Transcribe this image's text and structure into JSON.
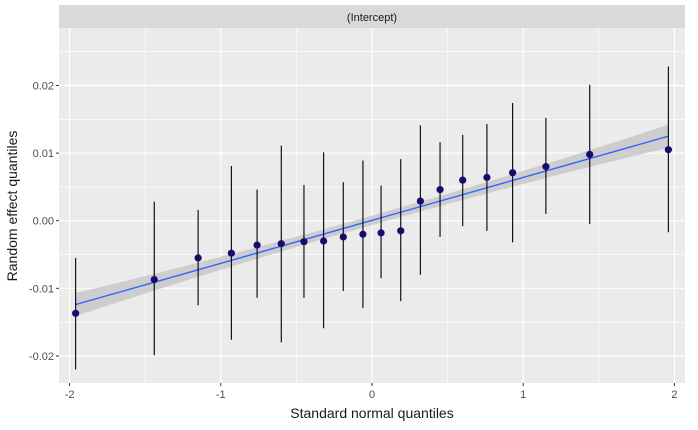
{
  "colors": {
    "panel_bg": "#ebebeb",
    "grid_major": "#ffffff",
    "strip_bg": "#d9d9d9",
    "point": "#1a0a6b",
    "errorbar": "#000000",
    "fit_line": "#3366ff",
    "ribbon": "#c8c8c8",
    "axis_tick": "#333333"
  },
  "chart_data": {
    "type": "scatter",
    "title": "",
    "strip_label": "(Intercept)",
    "xlabel": "Standard normal quantiles",
    "ylabel": "Random effect quantiles",
    "xlim": [
      -2.07,
      2.07
    ],
    "ylim": [
      -0.024,
      0.0285
    ],
    "x_ticks": [
      -2,
      -1,
      0,
      1,
      2
    ],
    "x_tick_labels": [
      "-2",
      "-1",
      "0",
      "1",
      "2"
    ],
    "y_ticks": [
      -0.02,
      -0.01,
      0.0,
      0.01,
      0.02
    ],
    "y_tick_labels": [
      "-0.02",
      "-0.01",
      "0.00",
      "0.01",
      "0.02"
    ],
    "grid": true,
    "points": [
      {
        "x": -1.96,
        "y": -0.0137,
        "lo": -0.022,
        "hi": -0.0055
      },
      {
        "x": -1.44,
        "y": -0.0087,
        "lo": -0.0199,
        "hi": 0.0028
      },
      {
        "x": -1.15,
        "y": -0.0055,
        "lo": -0.0125,
        "hi": 0.0016
      },
      {
        "x": -0.93,
        "y": -0.0048,
        "lo": -0.0176,
        "hi": 0.0081
      },
      {
        "x": -0.76,
        "y": -0.0036,
        "lo": -0.0114,
        "hi": 0.0046
      },
      {
        "x": -0.6,
        "y": -0.0034,
        "lo": -0.018,
        "hi": 0.0111
      },
      {
        "x": -0.45,
        "y": -0.0031,
        "lo": -0.0114,
        "hi": 0.0053
      },
      {
        "x": -0.32,
        "y": -0.003,
        "lo": -0.0159,
        "hi": 0.0101
      },
      {
        "x": -0.19,
        "y": -0.0024,
        "lo": -0.0104,
        "hi": 0.0057
      },
      {
        "x": -0.06,
        "y": -0.002,
        "lo": -0.0129,
        "hi": 0.0089
      },
      {
        "x": 0.06,
        "y": -0.0018,
        "lo": -0.0085,
        "hi": 0.0052
      },
      {
        "x": 0.19,
        "y": -0.0015,
        "lo": -0.0119,
        "hi": 0.0091
      },
      {
        "x": 0.32,
        "y": 0.0029,
        "lo": -0.008,
        "hi": 0.0141
      },
      {
        "x": 0.45,
        "y": 0.0046,
        "lo": -0.0024,
        "hi": 0.0116
      },
      {
        "x": 0.6,
        "y": 0.006,
        "lo": -0.0008,
        "hi": 0.0127
      },
      {
        "x": 0.76,
        "y": 0.0064,
        "lo": -0.0015,
        "hi": 0.0143
      },
      {
        "x": 0.93,
        "y": 0.0071,
        "lo": -0.0032,
        "hi": 0.0174
      },
      {
        "x": 1.15,
        "y": 0.008,
        "lo": 0.001,
        "hi": 0.0152
      },
      {
        "x": 1.44,
        "y": 0.0098,
        "lo": -0.0005,
        "hi": 0.0201
      },
      {
        "x": 1.96,
        "y": 0.0105,
        "lo": -0.0017,
        "hi": 0.0228
      }
    ],
    "fit_line": {
      "x": [
        -1.96,
        1.96
      ],
      "y": [
        -0.0124,
        0.0125
      ],
      "band_halfwidth_at_ends": 0.0017,
      "band_halfwidth_at_center": 0.0007
    }
  }
}
